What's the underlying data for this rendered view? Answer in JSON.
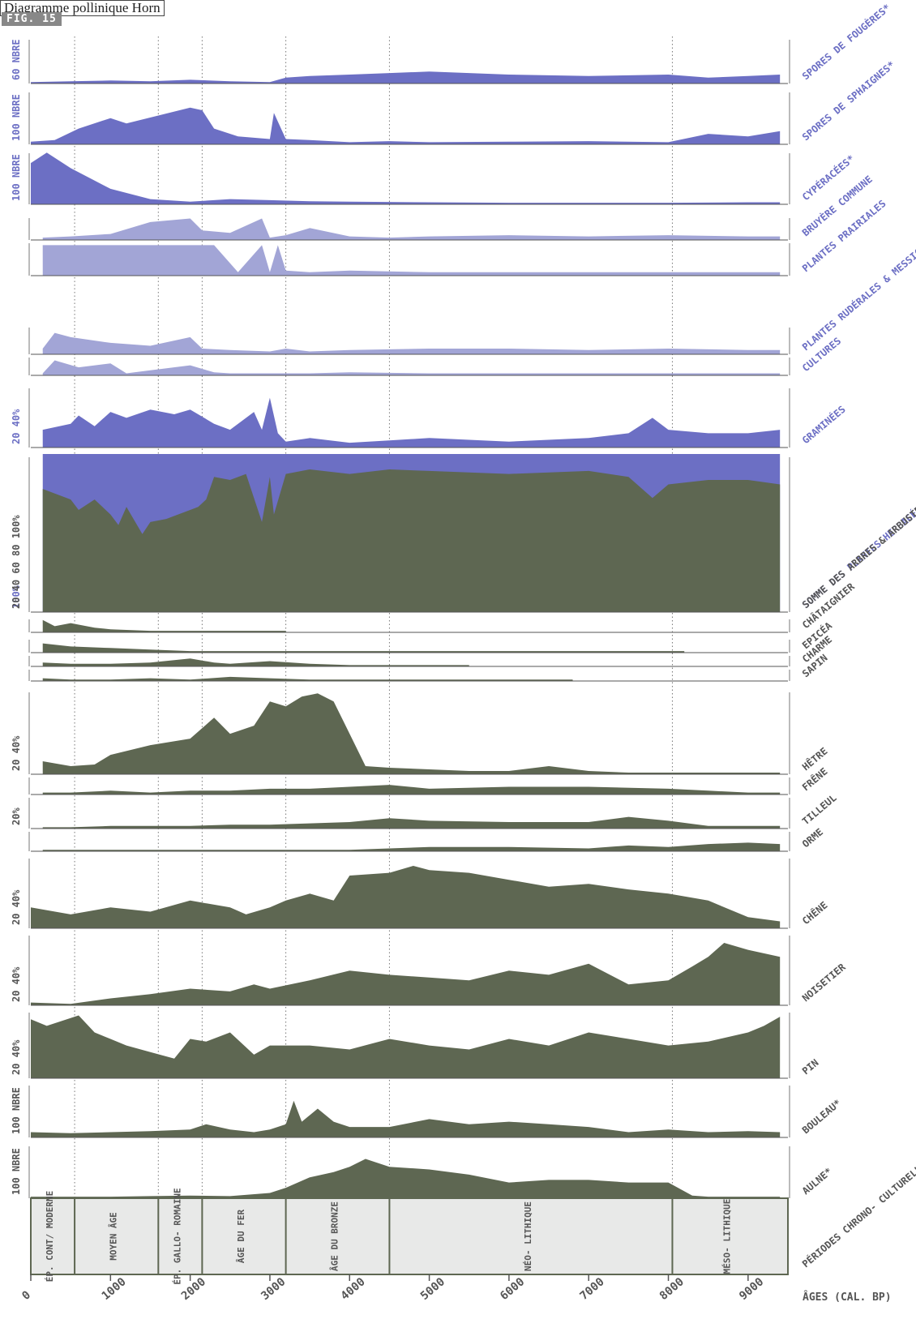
{
  "header": {
    "title": "Diagramme pollinique Horn",
    "fig": "FIG. 15"
  },
  "colors": {
    "herb": "#6c6fc4",
    "herb_light": "#a2a5d6",
    "tree": "#5e6752",
    "axis": "#555555",
    "periods_bg": "#e8e9e8"
  },
  "chart_data": {
    "type": "area",
    "x_axis": {
      "label": "ÂGES (CAL. BP)",
      "ticks": [
        "0",
        "1000",
        "2000",
        "3000",
        "4000",
        "5000",
        "6000",
        "7000",
        "8000",
        "9000"
      ],
      "range": [
        0,
        9500
      ]
    },
    "period_boundaries": [
      550,
      1600,
      2150,
      3200,
      4500,
      8050
    ],
    "periods": [
      {
        "label": "ÉP. CONT/ MODERNE",
        "from": 0,
        "to": 550
      },
      {
        "label": "MOYEN ÂGE",
        "from": 550,
        "to": 1600
      },
      {
        "label": "ÉP. GALLO- ROMAINE",
        "from": 1600,
        "to": 2150
      },
      {
        "label": "ÂGE DU FER",
        "from": 2150,
        "to": 3200
      },
      {
        "label": "ÂGE DU BRONZE",
        "from": 3200,
        "to": 4500
      },
      {
        "label": "NÉO- LITHIQUE",
        "from": 4500,
        "to": 8050
      },
      {
        "label": "MÉSO- LITHIQUE",
        "from": 8050,
        "to": 9500
      }
    ],
    "periods_label": "PÉRIODES CHRONO- CULTURELLES",
    "series": [
      {
        "name": "SPORES DE FOUGÈRES*",
        "scale": "60",
        "unit": "NBRE",
        "max": 60,
        "color": "herb",
        "x": [
          0,
          500,
          1000,
          1500,
          2000,
          2500,
          3000,
          3200,
          3500,
          4000,
          4500,
          5000,
          5500,
          6000,
          7000,
          8000,
          8500,
          9000,
          9400
        ],
        "y": [
          2,
          3,
          4,
          3,
          5,
          3,
          2,
          8,
          10,
          12,
          14,
          16,
          14,
          12,
          10,
          12,
          8,
          10,
          12
        ]
      },
      {
        "name": "SPORES DE SPHAIGNES*",
        "scale": "100",
        "unit": "NBRE",
        "max": 100,
        "color": "herb",
        "x": [
          0,
          300,
          600,
          1000,
          1200,
          1600,
          2000,
          2150,
          2300,
          2600,
          3000,
          3050,
          3200,
          3500,
          4000,
          4500,
          5000,
          6000,
          7000,
          8000,
          8500,
          9000,
          9400
        ],
        "y": [
          5,
          8,
          30,
          50,
          40,
          55,
          70,
          65,
          30,
          15,
          10,
          60,
          10,
          8,
          4,
          6,
          4,
          5,
          6,
          4,
          20,
          15,
          25
        ]
      },
      {
        "name": "CYPÉRACÉES*",
        "scale": "100",
        "unit": "NBRE",
        "max": 100,
        "color": "herb",
        "x": [
          0,
          200,
          500,
          1000,
          1500,
          2000,
          2500,
          3000,
          3500,
          4000,
          5000,
          6000,
          7000,
          8000,
          9000,
          9400
        ],
        "y": [
          80,
          100,
          70,
          30,
          10,
          5,
          10,
          8,
          6,
          5,
          4,
          3,
          3,
          3,
          4,
          4
        ]
      },
      {
        "name": "BRUYÈRE COMMUNE",
        "max": 20,
        "color": "herb_light",
        "x": [
          150,
          500,
          1000,
          1500,
          2000,
          2150,
          2500,
          2900,
          3000,
          3200,
          3500,
          4000,
          4500,
          5000,
          6000,
          7000,
          8000,
          9000,
          9400
        ],
        "y": [
          2,
          3,
          5,
          15,
          18,
          8,
          6,
          18,
          2,
          4,
          10,
          3,
          2,
          3,
          4,
          3,
          4,
          3,
          3
        ]
      },
      {
        "name": "PLANTES PRAIRIALES",
        "max": 20,
        "color": "herb_light",
        "x": [
          150,
          500,
          1000,
          1500,
          2000,
          2300,
          2600,
          2900,
          3000,
          3100,
          3200,
          3500,
          4000,
          5000,
          6000,
          7000,
          8000,
          9000,
          9400
        ],
        "y": [
          18,
          18,
          18,
          18,
          18,
          18,
          2,
          18,
          2,
          18,
          3,
          2,
          3,
          2,
          2,
          2,
          2,
          2,
          2
        ]
      },
      {
        "name": "PLANTES RUDÉRALES & MESSICOLES",
        "max": 20,
        "color": "herb_light",
        "x": [
          150,
          300,
          500,
          1000,
          1500,
          2000,
          2150,
          2500,
          3000,
          3200,
          3500,
          4000,
          5000,
          6000,
          7000,
          8000,
          9000,
          9400
        ],
        "y": [
          4,
          15,
          12,
          8,
          6,
          12,
          4,
          3,
          2,
          4,
          2,
          3,
          4,
          4,
          3,
          4,
          3,
          3
        ]
      },
      {
        "name": "CULTURES",
        "max": 20,
        "color": "herb_light",
        "x": [
          150,
          300,
          600,
          1000,
          1200,
          1500,
          2000,
          2300,
          2500,
          3000,
          3500,
          4000,
          5000,
          6000,
          7000,
          8000,
          9000,
          9400
        ],
        "y": [
          2,
          15,
          8,
          12,
          2,
          5,
          10,
          3,
          2,
          2,
          2,
          3,
          2,
          2,
          2,
          2,
          2,
          2
        ]
      },
      {
        "name": "GRAMINÉES",
        "scale": "20 40%",
        "max": 50,
        "color": "herb",
        "x": [
          150,
          500,
          600,
          800,
          1000,
          1200,
          1500,
          1800,
          2000,
          2300,
          2500,
          2800,
          2900,
          3000,
          3100,
          3200,
          3500,
          4000,
          4500,
          5000,
          6000,
          7000,
          7500,
          7800,
          8000,
          8500,
          9000,
          9400
        ],
        "y": [
          15,
          20,
          27,
          18,
          30,
          25,
          32,
          28,
          32,
          20,
          15,
          30,
          15,
          42,
          12,
          5,
          8,
          4,
          6,
          8,
          5,
          8,
          12,
          25,
          15,
          12,
          12,
          15
        ]
      },
      {
        "name": "SOMME DES PLANTES HERBACÉES",
        "scale": "100%",
        "max": 100,
        "color": "herb",
        "stack": "full",
        "x": [
          150,
          9400
        ],
        "y": [
          100,
          100
        ]
      },
      {
        "name": "SOMME DES ARBRES & ARBUSTES",
        "scale": "20 40 60 80 100%",
        "max": 100,
        "color": "tree",
        "x": [
          150,
          500,
          600,
          800,
          1000,
          1100,
          1200,
          1400,
          1500,
          1700,
          2000,
          2100,
          2200,
          2300,
          2500,
          2700,
          2900,
          3000,
          3050,
          3200,
          3500,
          4000,
          4500,
          5000,
          6000,
          7000,
          7500,
          7800,
          8000,
          8500,
          9000,
          9400
        ],
        "y": [
          82,
          75,
          68,
          75,
          65,
          58,
          70,
          52,
          60,
          62,
          68,
          70,
          75,
          90,
          88,
          92,
          60,
          90,
          65,
          92,
          95,
          92,
          95,
          94,
          92,
          94,
          90,
          76,
          85,
          88,
          88,
          85
        ]
      },
      {
        "name": "CHÂTAIGNIER",
        "max": 10,
        "color": "tree",
        "x": [
          150,
          300,
          500,
          800,
          1000,
          1500,
          2000,
          2500,
          3000,
          3200
        ],
        "y": [
          8,
          4,
          6,
          3,
          2,
          1,
          1,
          1,
          1,
          1
        ]
      },
      {
        "name": "EPICÉA",
        "max": 10,
        "color": "tree",
        "x": [
          150,
          500,
          1000,
          1500,
          2000,
          2500,
          3000,
          3500,
          4000,
          5000,
          6000,
          7000,
          8000,
          8200
        ],
        "y": [
          6,
          4,
          3,
          2,
          1,
          1,
          1,
          1,
          1,
          1,
          1,
          1,
          1,
          1
        ]
      },
      {
        "name": "CHARME",
        "max": 10,
        "color": "tree",
        "x": [
          150,
          500,
          1000,
          1500,
          2000,
          2300,
          2500,
          3000,
          3500,
          4000,
          4500,
          5000,
          5500
        ],
        "y": [
          3,
          2,
          2,
          3,
          6,
          3,
          2,
          4,
          2,
          1,
          1,
          1,
          1
        ]
      },
      {
        "name": "SAPIN",
        "max": 10,
        "color": "tree",
        "x": [
          150,
          500,
          1000,
          1500,
          2000,
          2500,
          3000,
          3500,
          4000,
          5000,
          6000,
          6800
        ],
        "y": [
          2,
          1,
          1,
          2,
          1,
          3,
          2,
          1,
          1,
          1,
          1,
          1
        ]
      },
      {
        "name": "HÊTRE",
        "scale": "20 40%",
        "max": 50,
        "color": "tree",
        "x": [
          150,
          500,
          800,
          1000,
          1500,
          2000,
          2300,
          2500,
          2800,
          3000,
          3200,
          3400,
          3600,
          3800,
          4000,
          4200,
          4500,
          5000,
          5500,
          6000,
          6500,
          7000,
          7500,
          8000,
          8500,
          9000,
          9400
        ],
        "y": [
          8,
          5,
          6,
          12,
          18,
          22,
          35,
          25,
          30,
          45,
          42,
          48,
          50,
          45,
          25,
          5,
          4,
          3,
          2,
          2,
          5,
          2,
          1,
          1,
          1,
          1,
          1
        ]
      },
      {
        "name": "FRÊNE",
        "max": 10,
        "color": "tree",
        "x": [
          150,
          500,
          1000,
          1500,
          2000,
          2500,
          3000,
          3500,
          4000,
          4500,
          5000,
          6000,
          7000,
          8000,
          8500,
          9000,
          9400
        ],
        "y": [
          1,
          1,
          2,
          1,
          2,
          2,
          3,
          3,
          4,
          5,
          3,
          4,
          4,
          3,
          2,
          1,
          1
        ]
      },
      {
        "name": "TILLEUL",
        "scale": "20%",
        "max": 25,
        "color": "tree",
        "x": [
          150,
          500,
          1000,
          1500,
          2000,
          2500,
          3000,
          3500,
          4000,
          4500,
          5000,
          6000,
          7000,
          7500,
          8000,
          8500,
          9000,
          9400
        ],
        "y": [
          1,
          1,
          2,
          2,
          2,
          3,
          3,
          4,
          5,
          8,
          6,
          5,
          5,
          9,
          6,
          2,
          2,
          2
        ]
      },
      {
        "name": "ORME",
        "max": 15,
        "color": "tree",
        "x": [
          150,
          500,
          1000,
          1500,
          2000,
          2500,
          3000,
          3500,
          4000,
          4500,
          5000,
          6000,
          7000,
          7500,
          8000,
          8500,
          9000,
          9400
        ],
        "y": [
          1,
          1,
          1,
          1,
          1,
          1,
          1,
          1,
          1,
          2,
          3,
          3,
          2,
          4,
          3,
          5,
          6,
          5
        ]
      },
      {
        "name": "CHÊNE",
        "scale": "20 40%",
        "max": 50,
        "color": "tree",
        "x": [
          0,
          500,
          1000,
          1500,
          2000,
          2500,
          2700,
          3000,
          3200,
          3500,
          3800,
          4000,
          4500,
          4800,
          5000,
          5500,
          6000,
          6500,
          7000,
          7500,
          8000,
          8500,
          9000,
          9400
        ],
        "y": [
          15,
          10,
          15,
          12,
          20,
          15,
          10,
          15,
          20,
          25,
          20,
          38,
          40,
          45,
          42,
          40,
          35,
          30,
          32,
          28,
          25,
          20,
          8,
          5
        ]
      },
      {
        "name": "NOISETIER",
        "scale": "20 40%",
        "max": 50,
        "color": "tree",
        "x": [
          0,
          500,
          1000,
          1500,
          2000,
          2500,
          2800,
          3000,
          3500,
          4000,
          4500,
          5000,
          5500,
          6000,
          6500,
          7000,
          7500,
          8000,
          8300,
          8500,
          8700,
          9000,
          9400
        ],
        "y": [
          2,
          1,
          5,
          8,
          12,
          10,
          15,
          12,
          18,
          25,
          22,
          20,
          18,
          25,
          22,
          30,
          15,
          18,
          28,
          35,
          45,
          40,
          35
        ]
      },
      {
        "name": "PIN",
        "scale": "20 40%",
        "max": 50,
        "color": "tree",
        "x": [
          0,
          200,
          600,
          800,
          1000,
          1200,
          1500,
          1800,
          2000,
          2200,
          2500,
          2800,
          3000,
          3500,
          4000,
          4500,
          5000,
          5500,
          6000,
          6500,
          7000,
          7500,
          8000,
          8500,
          9000,
          9200,
          9400
        ],
        "y": [
          45,
          40,
          48,
          35,
          30,
          25,
          20,
          15,
          30,
          28,
          35,
          18,
          25,
          25,
          22,
          30,
          25,
          22,
          30,
          25,
          35,
          30,
          25,
          28,
          35,
          40,
          47
        ]
      },
      {
        "name": "BOULEAU*",
        "scale": "100",
        "unit": "NBRE",
        "max": 100,
        "color": "tree",
        "x": [
          0,
          500,
          1000,
          1500,
          2000,
          2200,
          2500,
          2800,
          3000,
          3200,
          3300,
          3400,
          3600,
          3800,
          4000,
          4500,
          5000,
          5500,
          6000,
          6500,
          7000,
          7500,
          8000,
          8500,
          9000,
          9400
        ],
        "y": [
          10,
          8,
          10,
          12,
          15,
          25,
          15,
          10,
          15,
          25,
          70,
          30,
          55,
          30,
          20,
          20,
          35,
          25,
          30,
          25,
          20,
          10,
          15,
          10,
          12,
          10
        ]
      },
      {
        "name": "AULNE*",
        "scale": "100",
        "unit": "NBRE",
        "max": 100,
        "color": "tree",
        "x": [
          0,
          500,
          1000,
          1500,
          2000,
          2500,
          3000,
          3200,
          3500,
          3800,
          4000,
          4200,
          4500,
          5000,
          5500,
          6000,
          6500,
          7000,
          7500,
          8000,
          8300,
          8500,
          9000,
          9400
        ],
        "y": [
          3,
          3,
          3,
          4,
          5,
          4,
          10,
          20,
          40,
          50,
          60,
          75,
          60,
          55,
          45,
          30,
          35,
          35,
          30,
          30,
          5,
          3,
          3,
          3
        ]
      }
    ]
  }
}
